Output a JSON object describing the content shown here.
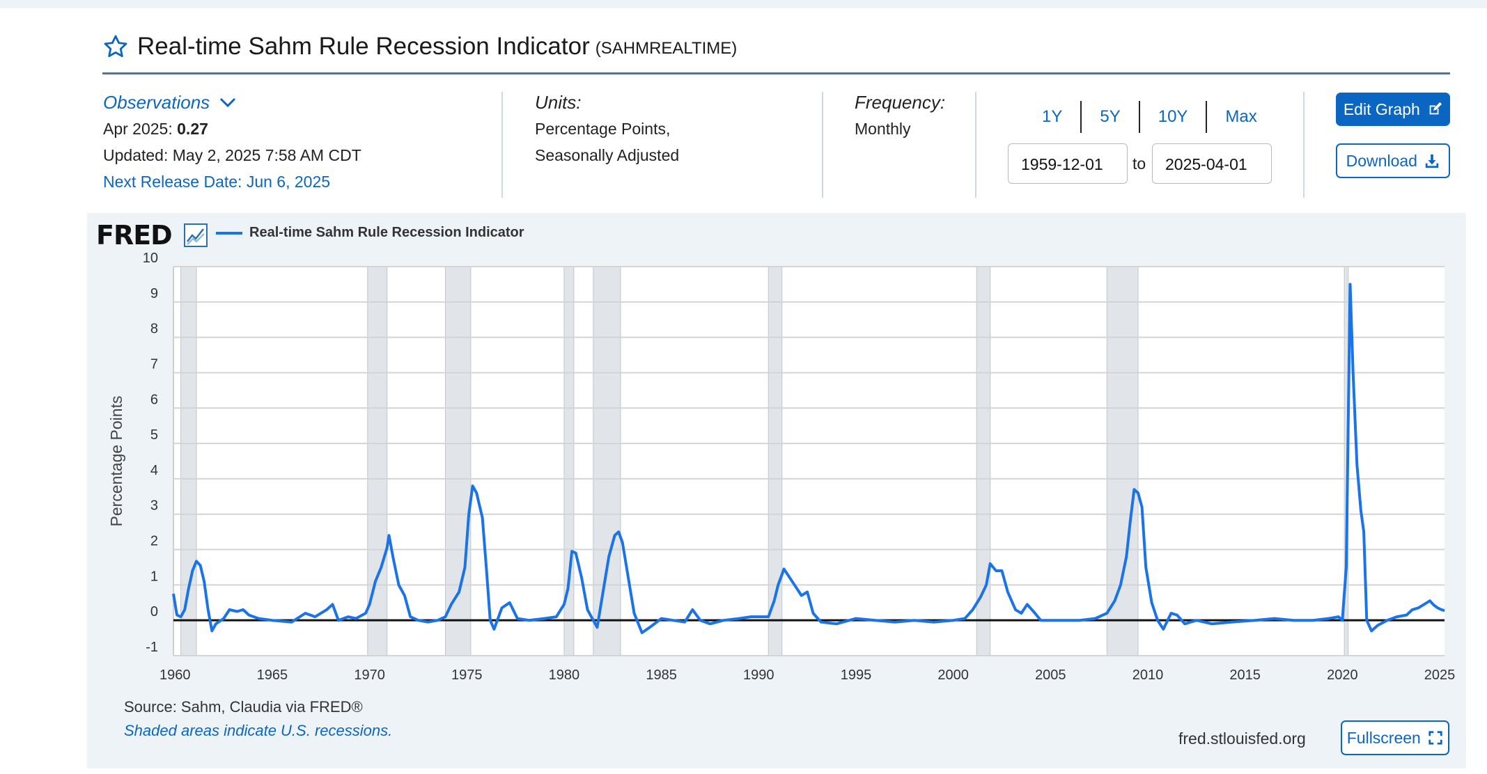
{
  "header": {
    "title": "Real-time Sahm Rule Recession Indicator",
    "code": "(SAHMREALTIME)"
  },
  "observations": {
    "label": "Observations",
    "date": "Apr 2025:",
    "value": "0.27",
    "updated": "Updated: May 2, 2025 7:58 AM CDT",
    "next_release": "Next Release Date: Jun 6, 2025"
  },
  "units": {
    "label": "Units:",
    "line1": "Percentage Points,",
    "line2": "Seasonally Adjusted"
  },
  "frequency": {
    "label": "Frequency:",
    "value": "Monthly"
  },
  "range": {
    "buttons": [
      "1Y",
      "5Y",
      "10Y",
      "Max"
    ],
    "start": "1959-12-01",
    "to": "to",
    "end": "2025-04-01"
  },
  "actions": {
    "edit_graph": "Edit Graph",
    "download": "Download",
    "fullscreen": "Fullscreen"
  },
  "footer": {
    "logo": "FRED",
    "source": "Source: Sahm, Claudia via FRED®",
    "shaded_note": "Shaded areas indicate U.S. recessions.",
    "site": "fred.stlouisfed.org"
  },
  "colors": {
    "accent": "#0b66c2",
    "series": "#1a73e8",
    "recession": "#e1e5e9",
    "panel": "#eef3f8"
  },
  "chart_data": {
    "type": "line",
    "title": "",
    "xlabel": "",
    "ylabel": "Percentage Points",
    "xlim": [
      1959.92,
      2025.25
    ],
    "ylim": [
      -1,
      10
    ],
    "y_ticks": [
      -1,
      0,
      1,
      2,
      3,
      4,
      5,
      6,
      7,
      8,
      9,
      10
    ],
    "x_ticks": [
      1960,
      1965,
      1970,
      1975,
      1980,
      1985,
      1990,
      1995,
      2000,
      2005,
      2010,
      2015,
      2020,
      2025
    ],
    "grid": true,
    "legend": "top-left",
    "recessions": [
      [
        1960.3,
        1961.1
      ],
      [
        1969.9,
        1970.9
      ],
      [
        1973.9,
        1975.2
      ],
      [
        1980.0,
        1980.5
      ],
      [
        1981.5,
        1982.9
      ],
      [
        1990.5,
        1991.2
      ],
      [
        2001.2,
        2001.9
      ],
      [
        2007.9,
        2009.5
      ],
      [
        2020.1,
        2020.3
      ]
    ],
    "series": [
      {
        "name": "Real-time Sahm Rule Recession Indicator",
        "points": [
          [
            1959.92,
            0.75
          ],
          [
            1960.1,
            0.15
          ],
          [
            1960.3,
            0.1
          ],
          [
            1960.5,
            0.3
          ],
          [
            1960.7,
            0.9
          ],
          [
            1960.9,
            1.4
          ],
          [
            1961.1,
            1.67
          ],
          [
            1961.3,
            1.55
          ],
          [
            1961.5,
            1.1
          ],
          [
            1961.7,
            0.3
          ],
          [
            1961.9,
            -0.3
          ],
          [
            1962.1,
            -0.1
          ],
          [
            1962.5,
            0.05
          ],
          [
            1962.8,
            0.3
          ],
          [
            1963.2,
            0.25
          ],
          [
            1963.5,
            0.3
          ],
          [
            1963.8,
            0.15
          ],
          [
            1964.3,
            0.05
          ],
          [
            1965.0,
            0.0
          ],
          [
            1966.0,
            -0.05
          ],
          [
            1966.7,
            0.2
          ],
          [
            1967.2,
            0.1
          ],
          [
            1967.8,
            0.3
          ],
          [
            1968.1,
            0.45
          ],
          [
            1968.4,
            0.0
          ],
          [
            1968.9,
            0.1
          ],
          [
            1969.3,
            0.05
          ],
          [
            1969.8,
            0.2
          ],
          [
            1970.0,
            0.45
          ],
          [
            1970.3,
            1.1
          ],
          [
            1970.6,
            1.5
          ],
          [
            1970.9,
            2.05
          ],
          [
            1971.0,
            2.4
          ],
          [
            1971.2,
            1.8
          ],
          [
            1971.5,
            1.0
          ],
          [
            1971.8,
            0.7
          ],
          [
            1972.1,
            0.1
          ],
          [
            1972.5,
            0.0
          ],
          [
            1973.0,
            -0.05
          ],
          [
            1973.5,
            0.0
          ],
          [
            1973.9,
            0.1
          ],
          [
            1974.2,
            0.45
          ],
          [
            1974.6,
            0.8
          ],
          [
            1974.9,
            1.5
          ],
          [
            1975.1,
            3.0
          ],
          [
            1975.3,
            3.8
          ],
          [
            1975.5,
            3.6
          ],
          [
            1975.8,
            2.9
          ],
          [
            1976.0,
            1.5
          ],
          [
            1976.2,
            0.0
          ],
          [
            1976.4,
            -0.25
          ],
          [
            1976.8,
            0.35
          ],
          [
            1977.2,
            0.5
          ],
          [
            1977.6,
            0.05
          ],
          [
            1978.2,
            0.0
          ],
          [
            1979.0,
            0.05
          ],
          [
            1979.6,
            0.1
          ],
          [
            1980.0,
            0.45
          ],
          [
            1980.2,
            0.9
          ],
          [
            1980.4,
            1.95
          ],
          [
            1980.6,
            1.9
          ],
          [
            1980.9,
            1.2
          ],
          [
            1981.2,
            0.3
          ],
          [
            1981.5,
            0.0
          ],
          [
            1981.7,
            -0.2
          ],
          [
            1982.0,
            0.8
          ],
          [
            1982.3,
            1.8
          ],
          [
            1982.6,
            2.4
          ],
          [
            1982.8,
            2.5
          ],
          [
            1983.0,
            2.2
          ],
          [
            1983.3,
            1.2
          ],
          [
            1983.6,
            0.2
          ],
          [
            1984.0,
            -0.35
          ],
          [
            1984.4,
            -0.2
          ],
          [
            1985.0,
            0.05
          ],
          [
            1985.6,
            0.0
          ],
          [
            1986.2,
            -0.05
          ],
          [
            1986.6,
            0.3
          ],
          [
            1987.0,
            0.0
          ],
          [
            1987.5,
            -0.1
          ],
          [
            1988.2,
            0.0
          ],
          [
            1989.0,
            0.05
          ],
          [
            1989.6,
            0.1
          ],
          [
            1990.2,
            0.1
          ],
          [
            1990.5,
            0.1
          ],
          [
            1990.8,
            0.55
          ],
          [
            1991.0,
            1.0
          ],
          [
            1991.3,
            1.45
          ],
          [
            1991.6,
            1.2
          ],
          [
            1991.9,
            0.95
          ],
          [
            1992.2,
            0.7
          ],
          [
            1992.5,
            0.8
          ],
          [
            1992.8,
            0.2
          ],
          [
            1993.2,
            -0.05
          ],
          [
            1994.0,
            -0.1
          ],
          [
            1995.0,
            0.05
          ],
          [
            1996.0,
            0.0
          ],
          [
            1997.0,
            -0.05
          ],
          [
            1998.0,
            0.0
          ],
          [
            1999.0,
            -0.05
          ],
          [
            2000.0,
            0.0
          ],
          [
            2000.6,
            0.05
          ],
          [
            2001.0,
            0.3
          ],
          [
            2001.4,
            0.65
          ],
          [
            2001.7,
            1.0
          ],
          [
            2001.9,
            1.6
          ],
          [
            2002.2,
            1.4
          ],
          [
            2002.5,
            1.4
          ],
          [
            2002.8,
            0.8
          ],
          [
            2003.2,
            0.3
          ],
          [
            2003.5,
            0.2
          ],
          [
            2003.8,
            0.45
          ],
          [
            2004.2,
            0.2
          ],
          [
            2004.5,
            0.0
          ],
          [
            2005.5,
            0.0
          ],
          [
            2006.5,
            0.0
          ],
          [
            2007.3,
            0.05
          ],
          [
            2007.9,
            0.2
          ],
          [
            2008.3,
            0.55
          ],
          [
            2008.6,
            1.0
          ],
          [
            2008.9,
            1.8
          ],
          [
            2009.1,
            2.8
          ],
          [
            2009.3,
            3.7
          ],
          [
            2009.5,
            3.6
          ],
          [
            2009.7,
            3.2
          ],
          [
            2009.9,
            1.5
          ],
          [
            2010.2,
            0.5
          ],
          [
            2010.5,
            0.0
          ],
          [
            2010.8,
            -0.25
          ],
          [
            2011.2,
            0.2
          ],
          [
            2011.5,
            0.15
          ],
          [
            2011.9,
            -0.1
          ],
          [
            2012.5,
            0.0
          ],
          [
            2013.3,
            -0.1
          ],
          [
            2014.3,
            -0.05
          ],
          [
            2015.5,
            0.0
          ],
          [
            2016.5,
            0.05
          ],
          [
            2017.5,
            0.0
          ],
          [
            2018.5,
            0.0
          ],
          [
            2019.3,
            0.05
          ],
          [
            2019.8,
            0.1
          ],
          [
            2020.0,
            0.0
          ],
          [
            2020.2,
            1.5
          ],
          [
            2020.3,
            5.5
          ],
          [
            2020.4,
            9.5
          ],
          [
            2020.55,
            7.0
          ],
          [
            2020.75,
            4.4
          ],
          [
            2020.95,
            3.1
          ],
          [
            2021.1,
            2.5
          ],
          [
            2021.25,
            0.0
          ],
          [
            2021.5,
            -0.3
          ],
          [
            2021.8,
            -0.15
          ],
          [
            2022.3,
            0.0
          ],
          [
            2022.8,
            0.1
          ],
          [
            2023.3,
            0.15
          ],
          [
            2023.6,
            0.3
          ],
          [
            2023.9,
            0.35
          ],
          [
            2024.2,
            0.45
          ],
          [
            2024.5,
            0.55
          ],
          [
            2024.7,
            0.43
          ],
          [
            2024.9,
            0.35
          ],
          [
            2025.1,
            0.3
          ],
          [
            2025.25,
            0.27
          ]
        ]
      }
    ]
  }
}
